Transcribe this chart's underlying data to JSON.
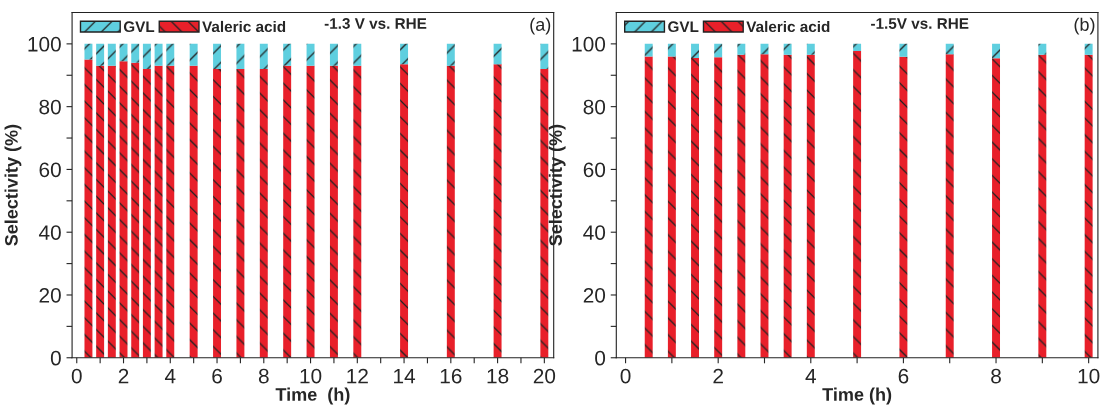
{
  "chart_data": [
    {
      "type": "bar",
      "stacked": true,
      "xlabel": "Time  (h)",
      "ylabel": "Selectivity (%)",
      "annotations": [
        "-1.3 V vs. RHE",
        "(a)"
      ],
      "legend": "top left",
      "x": [
        0.5,
        1,
        1.5,
        2,
        2.5,
        3,
        3.5,
        4,
        5,
        6,
        7,
        8,
        9,
        10,
        11,
        12,
        14,
        16,
        18,
        20
      ],
      "series": [
        {
          "name": "Valeric acid",
          "color": "#e8202a",
          "values": [
            95,
            93,
            93,
            94.5,
            94,
            92,
            93,
            93,
            93,
            92,
            92,
            92,
            93,
            93,
            93,
            93,
            93.5,
            93,
            93.5,
            92
          ]
        },
        {
          "name": "GVL",
          "color": "#5fcfdf",
          "values": [
            5,
            7,
            7,
            5.5,
            6,
            8,
            7,
            7,
            7,
            8,
            8,
            8,
            7,
            7,
            7,
            7,
            6.5,
            7,
            6.5,
            8
          ]
        }
      ],
      "xlim": [
        -0.2,
        20.4
      ],
      "xticks": [
        0,
        {
          "value": 1,
          "label": null
        },
        2,
        {
          "value": 3,
          "label": null
        },
        4,
        {
          "value": 5,
          "label": null
        },
        6,
        {
          "value": 7,
          "label": null
        },
        8,
        {
          "value": 9,
          "label": null
        },
        10,
        {
          "value": 11,
          "label": null
        },
        12,
        {
          "value": 13,
          "label": null
        },
        14,
        {
          "value": 15,
          "label": null
        },
        16,
        {
          "value": 17,
          "label": null
        },
        18,
        {
          "value": 19,
          "label": null
        },
        20
      ],
      "ylim": [
        0,
        110
      ],
      "yticks": [
        0,
        {
          "value": 10,
          "label": null
        },
        20,
        {
          "value": 30,
          "label": null
        },
        40,
        {
          "value": 50,
          "label": null
        },
        60,
        {
          "value": 70,
          "label": null
        },
        80,
        {
          "value": 90,
          "label": null
        },
        100
      ]
    },
    {
      "type": "bar",
      "stacked": true,
      "xlabel": "Time (h)",
      "ylabel": "Selectivity (%)",
      "annotations": [
        "-1.5V vs. RHE",
        "(b)"
      ],
      "legend": "top left",
      "x": [
        0.5,
        1,
        1.5,
        2,
        2.5,
        3,
        3.5,
        4,
        5,
        6,
        7,
        8,
        9,
        10
      ],
      "series": [
        {
          "name": "Valeric acid",
          "color": "#e8202a",
          "values": [
            96,
            96,
            95.5,
            95.7,
            96.5,
            96.7,
            96.5,
            96.5,
            97.7,
            95.9,
            96.7,
            95.4,
            96.5,
            96.5
          ]
        },
        {
          "name": "GVL",
          "color": "#5fcfdf",
          "values": [
            4,
            4,
            4.5,
            4.3,
            3.5,
            3.3,
            3.5,
            3.5,
            2.3,
            4.1,
            3.3,
            4.6,
            3.5,
            3.5
          ]
        }
      ],
      "xlim": [
        -0.2,
        10.2
      ],
      "xticks": [
        0,
        {
          "value": 1,
          "label": null
        },
        2,
        {
          "value": 3,
          "label": null
        },
        4,
        {
          "value": 5,
          "label": null
        },
        6,
        {
          "value": 7,
          "label": null
        },
        8,
        {
          "value": 9,
          "label": null
        },
        10
      ],
      "ylim": [
        0,
        110
      ],
      "yticks": [
        0,
        {
          "value": 10,
          "label": null
        },
        20,
        {
          "value": 30,
          "label": null
        },
        40,
        {
          "value": 50,
          "label": null
        },
        60,
        {
          "value": 70,
          "label": null
        },
        80,
        {
          "value": 90,
          "label": null
        },
        100
      ]
    }
  ]
}
